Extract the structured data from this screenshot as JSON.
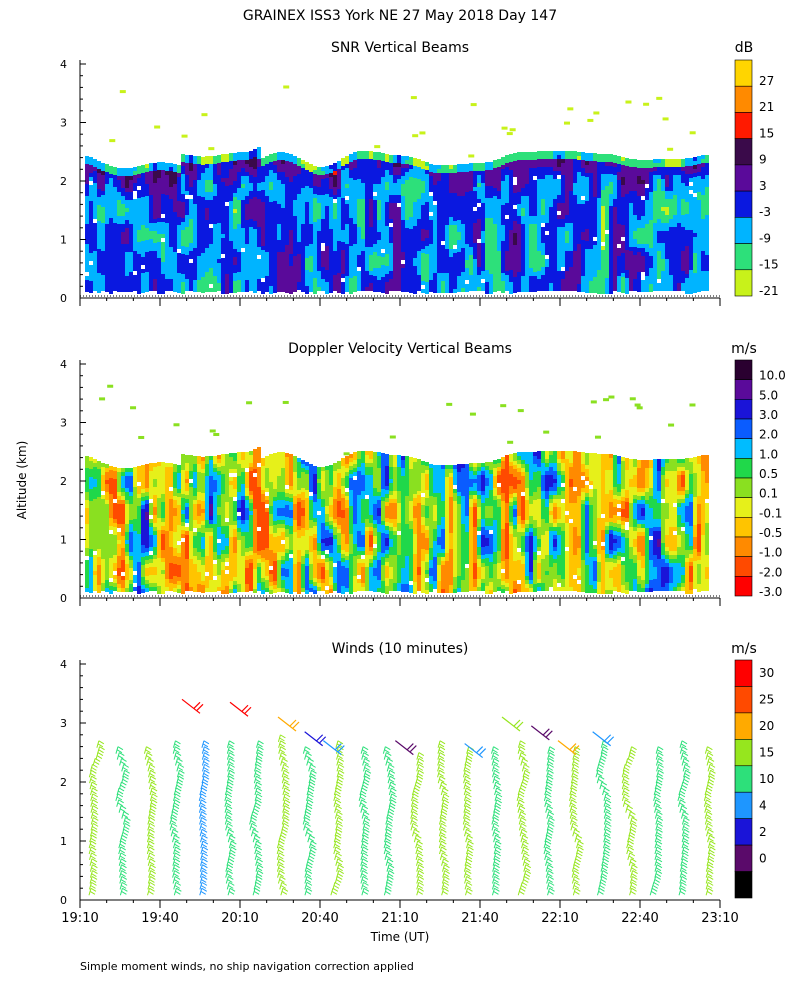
{
  "figure": {
    "title": "GRAINEX ISS3 York NE  27 May 2018 Day 147",
    "ylabel": "Altitude (km)",
    "xlabel": "Time (UT)",
    "footnote": "Simple moment winds, no ship navigation correction applied"
  },
  "chart_data": [
    {
      "type": "heatmap",
      "title": "SNR Vertical Beams",
      "colorbar_label": "dB",
      "colorbar_ticks": [
        "27",
        "21",
        "15",
        "9",
        "3",
        "-3",
        "-9",
        "-15",
        "-21"
      ],
      "colorbar_colors": [
        "#ffd500",
        "#ff8a00",
        "#ff1a00",
        "#3a0a4a",
        "#5a0a9a",
        "#0a18e0",
        "#00b4ff",
        "#2de07a",
        "#c8f21a"
      ],
      "x_ticks": [
        "19:10",
        "19:40",
        "20:10",
        "20:40",
        "21:10",
        "21:40",
        "22:10",
        "22:40",
        "23:10"
      ],
      "xlim": [
        "19:10",
        "23:10"
      ],
      "ylim": [
        0,
        4
      ],
      "y_ticks": [
        0,
        1,
        2,
        3,
        4
      ],
      "data_top_km": 2.35,
      "data_bottom_km": 0.12
    },
    {
      "type": "heatmap",
      "title": "Doppler Velocity Vertical Beams",
      "colorbar_label": "m/s",
      "colorbar_ticks": [
        "10.0",
        "5.0",
        "3.0",
        "2.0",
        "1.0",
        "0.5",
        "0.1",
        "-0.1",
        "-0.5",
        "-1.0",
        "-2.0",
        "-3.0"
      ],
      "colorbar_colors": [
        "#2a0030",
        "#5a0a9a",
        "#1a14d8",
        "#0a5cff",
        "#00bcff",
        "#20d84a",
        "#8ae020",
        "#e6f01a",
        "#ffc400",
        "#ff8a00",
        "#ff4a00",
        "#ff0000"
      ],
      "x_ticks": [
        "19:10",
        "19:40",
        "20:10",
        "20:40",
        "21:10",
        "21:40",
        "22:10",
        "22:40",
        "23:10"
      ],
      "xlim": [
        "19:10",
        "23:10"
      ],
      "ylim": [
        0,
        4
      ],
      "y_ticks": [
        0,
        1,
        2,
        3,
        4
      ],
      "data_top_km": 2.35,
      "data_bottom_km": 0.12
    },
    {
      "type": "scatter",
      "subtype": "wind-barbs",
      "title": "Winds (10 minutes)",
      "colorbar_label": "m/s",
      "colorbar_ticks": [
        "30",
        "25",
        "20",
        "15",
        "10",
        "4",
        "2",
        "0"
      ],
      "colorbar_colors": [
        "#ff0000",
        "#ff4a00",
        "#ffaa00",
        "#96e61e",
        "#2de07a",
        "#1e96ff",
        "#1a14d8",
        "#5a0a6a",
        "#000000"
      ],
      "x_ticks": [
        "19:10",
        "19:40",
        "20:10",
        "20:40",
        "21:10",
        "21:40",
        "22:10",
        "22:40",
        "23:10"
      ],
      "xlim": [
        "19:10",
        "23:10"
      ],
      "ylim": [
        0,
        4
      ],
      "y_ticks": [
        0,
        1,
        2,
        3,
        4
      ],
      "profile_times": [
        "19:15",
        "19:25",
        "19:35",
        "19:45",
        "19:55",
        "20:05",
        "20:15",
        "20:25",
        "20:35",
        "20:45",
        "20:55",
        "21:05",
        "21:15",
        "21:25",
        "21:35",
        "21:45",
        "21:55",
        "22:05",
        "22:15",
        "22:25",
        "22:35",
        "22:45",
        "22:55",
        "23:05"
      ],
      "profile_tops_km": [
        2.65,
        2.55,
        2.55,
        2.6,
        2.6,
        2.65,
        2.6,
        2.7,
        2.5,
        2.6,
        2.55,
        2.5,
        2.45,
        2.6,
        2.5,
        2.55,
        2.6,
        2.55,
        2.5,
        2.6,
        2.5,
        2.55,
        2.65,
        2.55
      ],
      "profile_speed_class": [
        "15",
        "10",
        "15",
        "10",
        "4",
        "10",
        "10",
        "15",
        "10",
        "15",
        "10",
        "10",
        "15",
        "15",
        "15",
        "10",
        "15",
        "10",
        "15",
        "10",
        "15",
        "10",
        "10",
        "15"
      ],
      "upper_barbs": [
        {
          "time": "19:52",
          "alt_km": 3.3,
          "speed_class": "30"
        },
        {
          "time": "20:10",
          "alt_km": 3.25,
          "speed_class": "30"
        },
        {
          "time": "20:28",
          "alt_km": 3.0,
          "speed_class": "20"
        },
        {
          "time": "20:38",
          "alt_km": 2.75,
          "speed_class": "2"
        },
        {
          "time": "20:45",
          "alt_km": 2.6,
          "speed_class": "4"
        },
        {
          "time": "21:12",
          "alt_km": 2.6,
          "speed_class": "0"
        },
        {
          "time": "21:38",
          "alt_km": 2.55,
          "speed_class": "4"
        },
        {
          "time": "21:52",
          "alt_km": 3.0,
          "speed_class": "15"
        },
        {
          "time": "22:03",
          "alt_km": 2.85,
          "speed_class": "0"
        },
        {
          "time": "22:13",
          "alt_km": 2.6,
          "speed_class": "20"
        },
        {
          "time": "22:26",
          "alt_km": 2.75,
          "speed_class": "4"
        }
      ]
    }
  ]
}
